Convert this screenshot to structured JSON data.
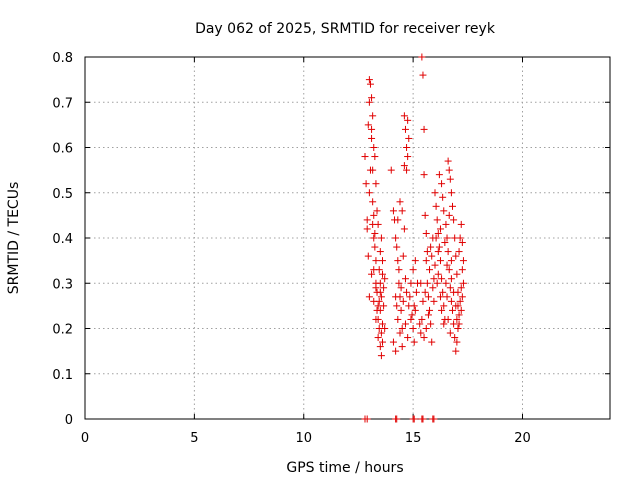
{
  "chart_data": {
    "type": "scatter",
    "title": "Day 062 of 2025, SRMTID for receiver reyk",
    "xlabel": "GPS time / hours",
    "ylabel": "SRMTID / TECUs",
    "xlim": [
      0,
      24
    ],
    "ylim": [
      0,
      0.8
    ],
    "xticks": [
      0,
      5,
      10,
      15,
      20
    ],
    "yticks": [
      0,
      0.1,
      0.2,
      0.3,
      0.4,
      0.5,
      0.6,
      0.7,
      0.8
    ],
    "grid": true,
    "marker": "+",
    "color": "#e00000",
    "series": [
      {
        "name": "reyk",
        "points": [
          [
            12.8,
            0.0
          ],
          [
            12.9,
            0.0
          ],
          [
            14.2,
            0.0
          ],
          [
            14.25,
            0.0
          ],
          [
            15.0,
            0.0
          ],
          [
            15.05,
            0.0
          ],
          [
            15.4,
            0.0
          ],
          [
            15.45,
            0.0
          ],
          [
            15.9,
            0.0
          ],
          [
            15.95,
            0.0
          ],
          [
            12.8,
            0.58
          ],
          [
            12.85,
            0.52
          ],
          [
            12.9,
            0.44
          ],
          [
            12.95,
            0.65
          ],
          [
            13.0,
            0.7
          ],
          [
            13.0,
            0.75
          ],
          [
            13.05,
            0.74
          ],
          [
            13.1,
            0.71
          ],
          [
            13.1,
            0.62
          ],
          [
            13.15,
            0.55
          ],
          [
            13.15,
            0.48
          ],
          [
            13.2,
            0.45
          ],
          [
            13.2,
            0.4
          ],
          [
            13.25,
            0.38
          ],
          [
            13.3,
            0.35
          ],
          [
            13.3,
            0.3
          ],
          [
            13.35,
            0.28
          ],
          [
            13.4,
            0.25
          ],
          [
            13.4,
            0.22
          ],
          [
            13.45,
            0.2
          ],
          [
            12.9,
            0.42
          ],
          [
            12.95,
            0.36
          ],
          [
            13.0,
            0.5
          ],
          [
            13.05,
            0.55
          ],
          [
            13.1,
            0.64
          ],
          [
            13.15,
            0.67
          ],
          [
            13.2,
            0.6
          ],
          [
            13.25,
            0.58
          ],
          [
            13.3,
            0.52
          ],
          [
            13.35,
            0.46
          ],
          [
            13.0,
            0.27
          ],
          [
            13.1,
            0.32
          ],
          [
            13.2,
            0.26
          ],
          [
            13.3,
            0.22
          ],
          [
            13.4,
            0.18
          ],
          [
            13.5,
            0.16
          ],
          [
            13.55,
            0.14
          ],
          [
            13.6,
            0.17
          ],
          [
            13.5,
            0.3
          ],
          [
            13.45,
            0.33
          ],
          [
            13.5,
            0.24
          ],
          [
            13.55,
            0.27
          ],
          [
            13.6,
            0.21
          ],
          [
            13.65,
            0.25
          ],
          [
            13.7,
            0.2
          ],
          [
            13.5,
            0.37
          ],
          [
            13.55,
            0.4
          ],
          [
            13.6,
            0.35
          ],
          [
            13.65,
            0.29
          ],
          [
            13.7,
            0.31
          ],
          [
            13.4,
            0.43
          ],
          [
            13.5,
            0.28
          ],
          [
            13.6,
            0.32
          ],
          [
            13.3,
            0.29
          ],
          [
            13.2,
            0.33
          ],
          [
            13.15,
            0.43
          ],
          [
            13.25,
            0.41
          ],
          [
            13.35,
            0.24
          ],
          [
            13.45,
            0.26
          ],
          [
            13.55,
            0.19
          ],
          [
            14.0,
            0.55
          ],
          [
            14.1,
            0.46
          ],
          [
            14.15,
            0.44
          ],
          [
            14.2,
            0.4
          ],
          [
            14.25,
            0.38
          ],
          [
            14.3,
            0.35
          ],
          [
            14.35,
            0.3
          ],
          [
            14.4,
            0.27
          ],
          [
            14.45,
            0.24
          ],
          [
            14.5,
            0.2
          ],
          [
            14.1,
            0.17
          ],
          [
            14.2,
            0.15
          ],
          [
            14.3,
            0.22
          ],
          [
            14.4,
            0.19
          ],
          [
            14.5,
            0.16
          ],
          [
            14.3,
            0.44
          ],
          [
            14.4,
            0.48
          ],
          [
            14.5,
            0.46
          ],
          [
            14.6,
            0.42
          ],
          [
            14.55,
            0.36
          ],
          [
            14.6,
            0.67
          ],
          [
            14.65,
            0.64
          ],
          [
            14.7,
            0.6
          ],
          [
            14.75,
            0.58
          ],
          [
            14.6,
            0.56
          ],
          [
            14.7,
            0.55
          ],
          [
            14.75,
            0.66
          ],
          [
            14.8,
            0.62
          ],
          [
            14.65,
            0.31
          ],
          [
            14.7,
            0.28
          ],
          [
            14.8,
            0.25
          ],
          [
            14.9,
            0.22
          ],
          [
            15.0,
            0.2
          ],
          [
            15.05,
            0.17
          ],
          [
            15.1,
            0.24
          ],
          [
            15.15,
            0.28
          ],
          [
            15.2,
            0.3
          ],
          [
            15.0,
            0.33
          ],
          [
            15.1,
            0.35
          ],
          [
            14.9,
            0.3
          ],
          [
            14.2,
            0.27
          ],
          [
            14.25,
            0.25
          ],
          [
            14.35,
            0.33
          ],
          [
            14.45,
            0.29
          ],
          [
            14.55,
            0.26
          ],
          [
            14.65,
            0.21
          ],
          [
            14.75,
            0.18
          ],
          [
            14.85,
            0.27
          ],
          [
            14.95,
            0.23
          ],
          [
            15.05,
            0.25
          ],
          [
            15.4,
            0.8
          ],
          [
            15.45,
            0.76
          ],
          [
            15.5,
            0.64
          ],
          [
            15.5,
            0.54
          ],
          [
            15.55,
            0.45
          ],
          [
            15.6,
            0.41
          ],
          [
            15.6,
            0.35
          ],
          [
            15.65,
            0.3
          ],
          [
            15.7,
            0.27
          ],
          [
            15.75,
            0.24
          ],
          [
            15.3,
            0.21
          ],
          [
            15.35,
            0.19
          ],
          [
            15.4,
            0.22
          ],
          [
            15.5,
            0.18
          ],
          [
            15.6,
            0.2
          ],
          [
            15.7,
            0.23
          ],
          [
            15.8,
            0.21
          ],
          [
            15.85,
            0.17
          ],
          [
            15.9,
            0.29
          ],
          [
            15.95,
            0.26
          ],
          [
            15.8,
            0.38
          ],
          [
            15.85,
            0.36
          ],
          [
            15.9,
            0.4
          ],
          [
            15.75,
            0.33
          ],
          [
            15.65,
            0.37
          ],
          [
            15.95,
            0.31
          ],
          [
            16.0,
            0.34
          ],
          [
            15.55,
            0.28
          ],
          [
            15.45,
            0.26
          ],
          [
            15.35,
            0.3
          ],
          [
            16.0,
            0.5
          ],
          [
            16.05,
            0.47
          ],
          [
            16.1,
            0.44
          ],
          [
            16.15,
            0.41
          ],
          [
            16.2,
            0.38
          ],
          [
            16.25,
            0.35
          ],
          [
            16.3,
            0.31
          ],
          [
            16.35,
            0.28
          ],
          [
            16.4,
            0.25
          ],
          [
            16.45,
            0.22
          ],
          [
            16.2,
            0.54
          ],
          [
            16.3,
            0.52
          ],
          [
            16.35,
            0.49
          ],
          [
            16.4,
            0.46
          ],
          [
            16.5,
            0.43
          ],
          [
            16.55,
            0.4
          ],
          [
            16.6,
            0.37
          ],
          [
            16.65,
            0.33
          ],
          [
            16.7,
            0.29
          ],
          [
            16.75,
            0.26
          ],
          [
            16.6,
            0.57
          ],
          [
            16.65,
            0.55
          ],
          [
            16.7,
            0.53
          ],
          [
            16.75,
            0.5
          ],
          [
            16.8,
            0.47
          ],
          [
            16.85,
            0.44
          ],
          [
            16.9,
            0.4
          ],
          [
            16.95,
            0.36
          ],
          [
            17.0,
            0.32
          ],
          [
            17.05,
            0.28
          ],
          [
            16.8,
            0.24
          ],
          [
            16.85,
            0.21
          ],
          [
            16.9,
            0.18
          ],
          [
            16.95,
            0.15
          ],
          [
            17.0,
            0.17
          ],
          [
            17.05,
            0.2
          ],
          [
            17.1,
            0.23
          ],
          [
            17.15,
            0.26
          ],
          [
            17.2,
            0.29
          ],
          [
            17.25,
            0.33
          ],
          [
            17.1,
            0.37
          ],
          [
            17.15,
            0.4
          ],
          [
            17.2,
            0.43
          ],
          [
            17.25,
            0.39
          ],
          [
            17.3,
            0.35
          ],
          [
            17.3,
            0.3
          ],
          [
            17.25,
            0.27
          ],
          [
            17.2,
            0.24
          ],
          [
            17.1,
            0.21
          ],
          [
            17.05,
            0.25
          ],
          [
            16.1,
            0.3
          ],
          [
            16.15,
            0.32
          ],
          [
            16.25,
            0.27
          ],
          [
            16.3,
            0.24
          ],
          [
            16.4,
            0.21
          ],
          [
            16.5,
            0.3
          ],
          [
            16.55,
            0.27
          ],
          [
            16.6,
            0.22
          ],
          [
            16.7,
            0.19
          ],
          [
            16.75,
            0.31
          ],
          [
            16.05,
            0.4
          ],
          [
            16.15,
            0.37
          ],
          [
            16.25,
            0.42
          ],
          [
            16.45,
            0.39
          ],
          [
            16.55,
            0.34
          ],
          [
            16.65,
            0.45
          ],
          [
            16.75,
            0.35
          ],
          [
            16.85,
            0.28
          ],
          [
            16.95,
            0.25
          ],
          [
            17.0,
            0.22
          ]
        ]
      }
    ]
  }
}
